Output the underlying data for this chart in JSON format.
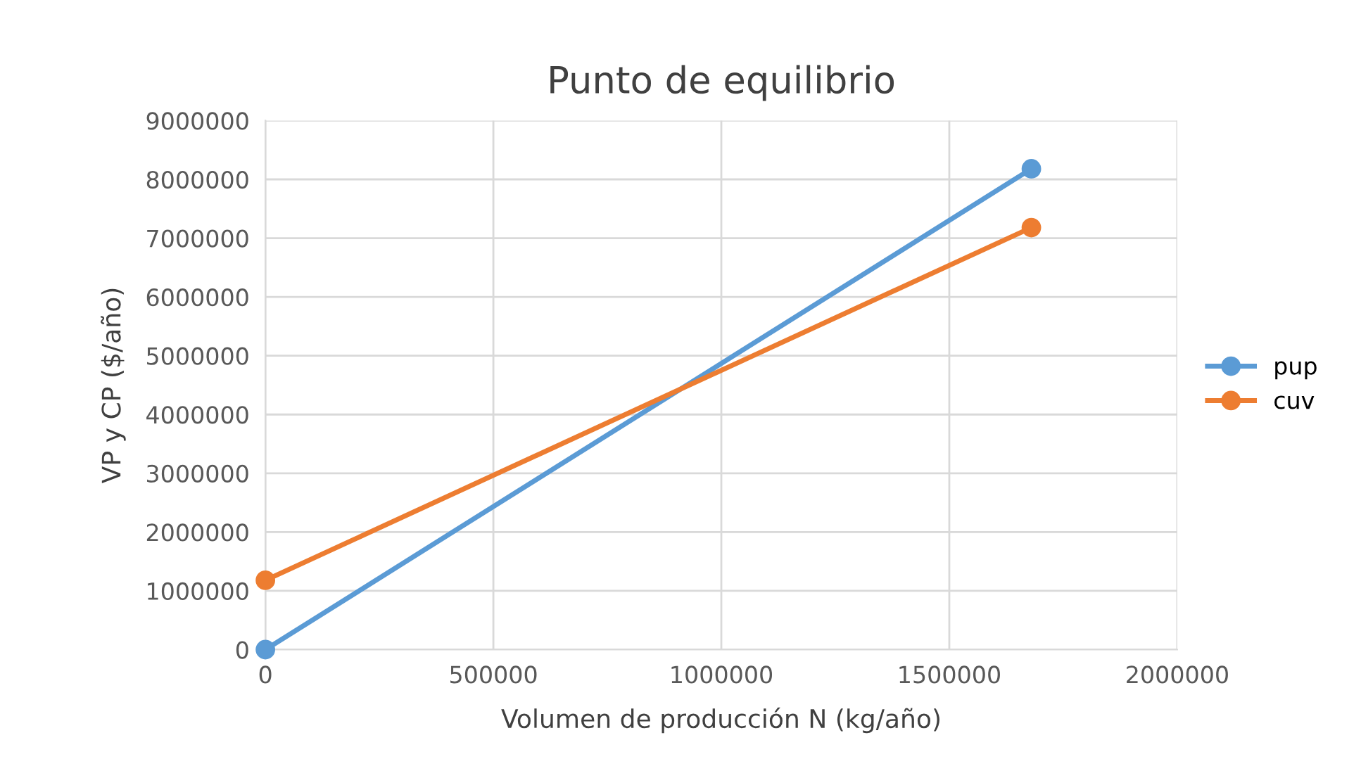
{
  "chart_data": {
    "type": "line",
    "title": "Punto de equilibrio",
    "xlabel": "Volumen de producción N (kg/año)",
    "ylabel": "VP y CP ($/año)",
    "series": [
      {
        "name": "pup",
        "color": "#5b9bd5",
        "values": [
          0,
          8180000
        ]
      },
      {
        "name": "cuv",
        "color": "#ed7d31",
        "values": [
          1180000,
          7180000
        ]
      }
    ],
    "x": [
      0,
      1680000
    ],
    "xlim": [
      0,
      2000000
    ],
    "xticks": [
      0,
      500000,
      1000000,
      1500000,
      2000000
    ],
    "ylim": [
      0,
      9000000
    ],
    "yticks": [
      0,
      1000000,
      2000000,
      3000000,
      4000000,
      5000000,
      6000000,
      7000000,
      8000000,
      9000000
    ],
    "grid": true,
    "legend": "right",
    "marker": "circle",
    "line_style": "solid"
  }
}
